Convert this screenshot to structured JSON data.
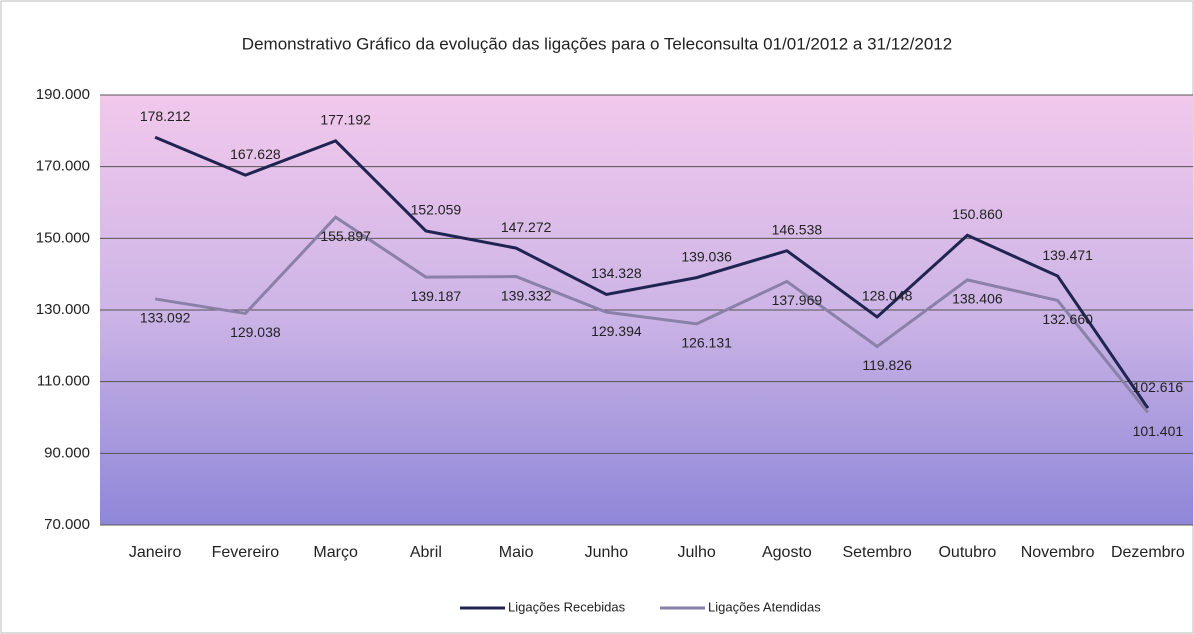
{
  "chart_data": {
    "type": "line",
    "title": "Demonstrativo Gráfico da evolução das ligações para o Teleconsulta 01/01/2012 a 31/12/2012",
    "categories": [
      "Janeiro",
      "Fevereiro",
      "Março",
      "Abril",
      "Maio",
      "Junho",
      "Julho",
      "Agosto",
      "Setembro",
      "Outubro",
      "Novembro",
      "Dezembro"
    ],
    "series": [
      {
        "name": "Ligações Recebidas",
        "color": "#1f2450",
        "values": [
          178212,
          167628,
          177192,
          152059,
          147272,
          134328,
          139036,
          146538,
          128048,
          150860,
          139471,
          102616
        ],
        "value_labels": [
          "178.212",
          "167.628",
          "177.192",
          "152.059",
          "147.272",
          "134.328",
          "139.036",
          "146.538",
          "128.048",
          "150.860",
          "139.471",
          "102.616"
        ]
      },
      {
        "name": "Ligações Atendidas",
        "color": "#8a80a8",
        "values": [
          133092,
          129038,
          155897,
          139187,
          139332,
          129394,
          126131,
          137969,
          119826,
          138406,
          132660,
          101401
        ],
        "value_labels": [
          "133.092",
          "129.038",
          "155.897",
          "139.187",
          "139.332",
          "129.394",
          "126.131",
          "137.969",
          "119.826",
          "138.406",
          "132.660",
          "101.401"
        ]
      }
    ],
    "ylim": [
      70000,
      190000
    ],
    "yticks": [
      {
        "value": 70000,
        "label": "70.000"
      },
      {
        "value": 90000,
        "label": "90.000"
      },
      {
        "value": 110000,
        "label": "110.000"
      },
      {
        "value": 130000,
        "label": "130.000"
      },
      {
        "value": 150000,
        "label": "150.000"
      },
      {
        "value": 170000,
        "label": "170.000"
      },
      {
        "value": 190000,
        "label": "190.000"
      }
    ],
    "grid": true,
    "legend": "bottom"
  }
}
